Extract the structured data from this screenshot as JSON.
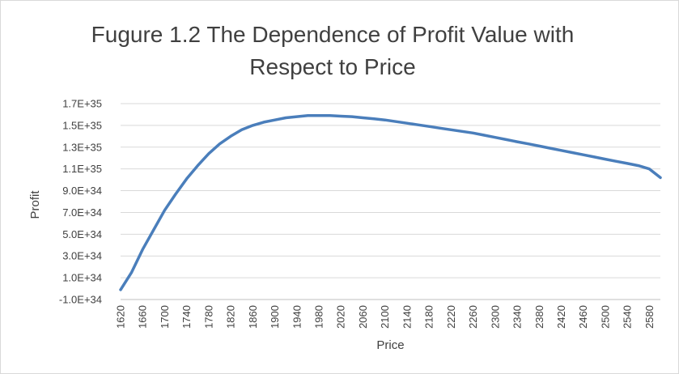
{
  "chart_data": {
    "type": "line",
    "title": "Fugure 1.2 The Dependence  of Profit Value with\nRespect to Price",
    "xlabel": "Price",
    "ylabel": "Profit",
    "xlim": [
      1620,
      2600
    ],
    "ylim": [
      -1e+34,
      1.7e+35
    ],
    "grid": true,
    "x_ticks": [
      "1620",
      "1660",
      "1700",
      "1740",
      "1780",
      "1820",
      "1860",
      "1900",
      "1940",
      "1980",
      "2020",
      "2060",
      "2100",
      "2140",
      "2180",
      "2220",
      "2260",
      "2300",
      "2340",
      "2380",
      "2420",
      "2460",
      "2500",
      "2540",
      "2580"
    ],
    "y_ticks": [
      "-1.0E+34",
      "1.0E+34",
      "3.0E+34",
      "5.0E+34",
      "7.0E+34",
      "9.0E+34",
      "1.1E+35",
      "1.3E+35",
      "1.5E+35",
      "1.7E+35"
    ],
    "series": [
      {
        "name": "",
        "color": "#4a7ebb",
        "x": [
          1620,
          1640,
          1660,
          1680,
          1700,
          1720,
          1740,
          1760,
          1780,
          1800,
          1820,
          1840,
          1860,
          1880,
          1900,
          1920,
          1940,
          1960,
          1980,
          2000,
          2020,
          2040,
          2060,
          2080,
          2100,
          2120,
          2140,
          2160,
          2180,
          2200,
          2220,
          2240,
          2260,
          2280,
          2300,
          2320,
          2340,
          2360,
          2380,
          2400,
          2420,
          2440,
          2460,
          2480,
          2500,
          2520,
          2540,
          2560,
          2580,
          2600
        ],
        "y": [
          -1e+33,
          1.5e+34,
          3.6e+34,
          5.4e+34,
          7.2e+34,
          8.7e+34,
          1.01e+35,
          1.13e+35,
          1.24e+35,
          1.33e+35,
          1.4e+35,
          1.46e+35,
          1.5e+35,
          1.53e+35,
          1.55e+35,
          1.57e+35,
          1.58e+35,
          1.59e+35,
          1.59e+35,
          1.59e+35,
          1.585e+35,
          1.58e+35,
          1.57e+35,
          1.56e+35,
          1.55e+35,
          1.535e+35,
          1.52e+35,
          1.505e+35,
          1.49e+35,
          1.475e+35,
          1.46e+35,
          1.445e+35,
          1.43e+35,
          1.41e+35,
          1.39e+35,
          1.37e+35,
          1.35e+35,
          1.33e+35,
          1.31e+35,
          1.29e+35,
          1.27e+35,
          1.25e+35,
          1.23e+35,
          1.21e+35,
          1.19e+35,
          1.17e+35,
          1.15e+35,
          1.13e+35,
          1.1e+35,
          1.02e+35
        ]
      }
    ]
  }
}
